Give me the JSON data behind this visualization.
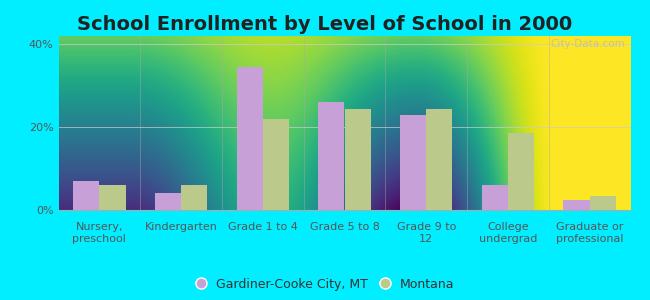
{
  "title": "School Enrollment by Level of School in 2000",
  "categories": [
    "Nursery,\npreschool",
    "Kindergarten",
    "Grade 1 to 4",
    "Grade 5 to 8",
    "Grade 9 to\n12",
    "College\nundergrad",
    "Graduate or\nprofessional"
  ],
  "series1_label": "Gardiner-Cooke City, MT",
  "series2_label": "Montana",
  "series1_values": [
    7.0,
    4.0,
    34.5,
    26.0,
    23.0,
    6.0,
    2.5
  ],
  "series2_values": [
    6.0,
    6.0,
    22.0,
    24.5,
    24.5,
    18.5,
    3.5
  ],
  "series1_color": "#c8a0d8",
  "series2_color": "#bbc98a",
  "background_outer": "#00eeff",
  "background_inner_grad_top": "#f0f8f0",
  "background_inner_grad_bottom": "#c8e8c0",
  "ylim": [
    0,
    42
  ],
  "yticks": [
    0,
    20,
    40
  ],
  "ytick_labels": [
    "0%",
    "20%",
    "40%"
  ],
  "bar_width": 0.32,
  "title_fontsize": 14,
  "tick_fontsize": 8,
  "legend_fontsize": 9,
  "watermark": "City-Data.com"
}
